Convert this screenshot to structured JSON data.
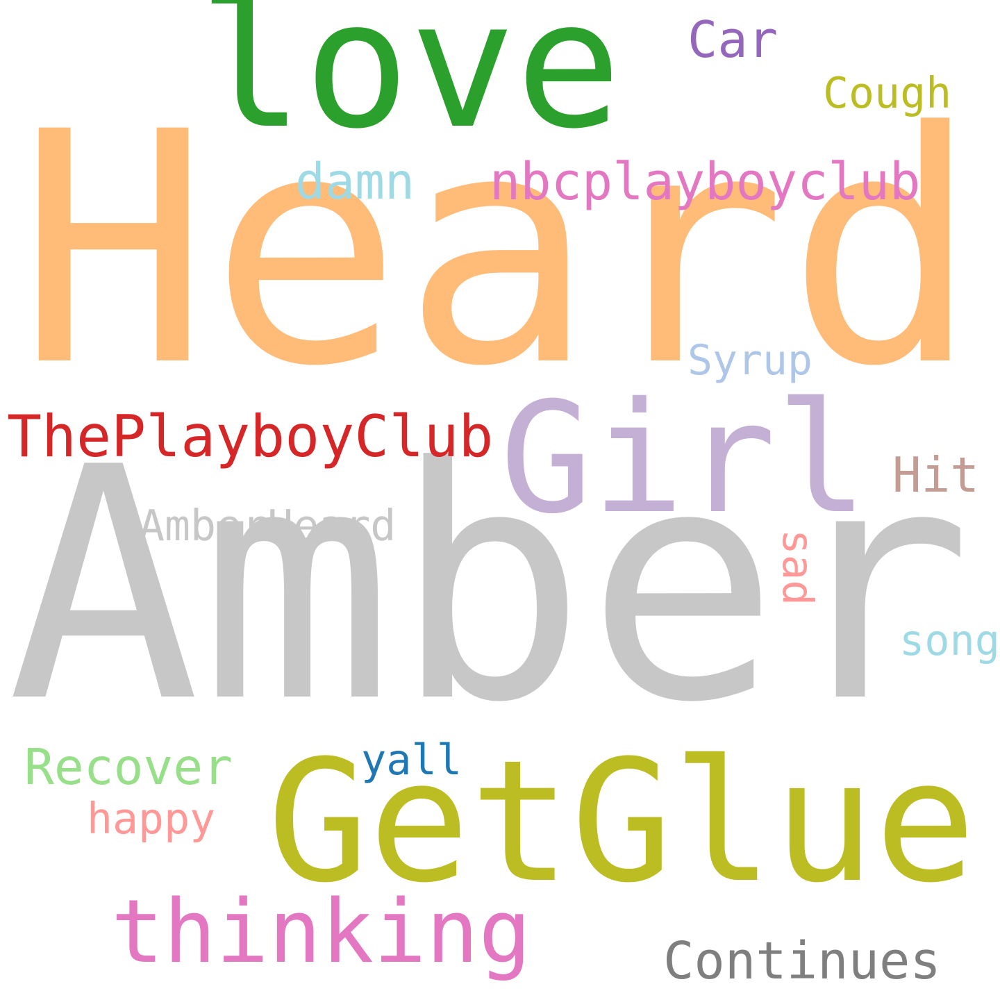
{
  "words": [
    {
      "id": "amber",
      "text": "Amber",
      "color": "#c7c7c7",
      "weight": 1.0
    },
    {
      "id": "heard",
      "text": "Heard",
      "color": "#ffbb78",
      "weight": 0.97
    },
    {
      "id": "getglue",
      "text": "GetGlue",
      "color": "#bcbd22",
      "weight": 0.54
    },
    {
      "id": "love",
      "text": "love",
      "color": "#2ca02c",
      "weight": 0.54
    },
    {
      "id": "girl",
      "text": "Girl",
      "color": "#c5b0d5",
      "weight": 0.52
    },
    {
      "id": "thinking",
      "text": "thinking",
      "color": "#e377c2",
      "weight": 0.27
    },
    {
      "id": "theplayboyclub",
      "text": "ThePlayboyClub",
      "color": "#d62728",
      "weight": 0.2
    },
    {
      "id": "nbcplayboyclub",
      "text": "nbcplayboyclub",
      "color": "#e377c2",
      "weight": 0.17
    },
    {
      "id": "continues",
      "text": "Continues",
      "color": "#7f7f7f",
      "weight": 0.17
    },
    {
      "id": "damn",
      "text": "damn",
      "color": "#9edae5",
      "weight": 0.17
    },
    {
      "id": "recover",
      "text": "Recover",
      "color": "#98df8a",
      "weight": 0.17
    },
    {
      "id": "amberheard",
      "text": "AmberHeard",
      "color": "#c7c7c7",
      "weight": 0.14
    },
    {
      "id": "car",
      "text": "Car",
      "color": "#9467bd",
      "weight": 0.14
    },
    {
      "id": "cough",
      "text": "Cough",
      "color": "#bcbd22",
      "weight": 0.14
    },
    {
      "id": "syrup",
      "text": "Syrup",
      "color": "#aec7e8",
      "weight": 0.14
    },
    {
      "id": "hit",
      "text": "Hit",
      "color": "#c49c94",
      "weight": 0.14
    },
    {
      "id": "song",
      "text": "song",
      "color": "#9edae5",
      "weight": 0.14
    },
    {
      "id": "yall",
      "text": "yall",
      "color": "#1f77b4",
      "weight": 0.14
    },
    {
      "id": "happy",
      "text": "happy",
      "color": "#ff9896",
      "weight": 0.14
    },
    {
      "id": "sad",
      "text": "sad",
      "color": "#ff9896",
      "weight": 0.12
    }
  ]
}
